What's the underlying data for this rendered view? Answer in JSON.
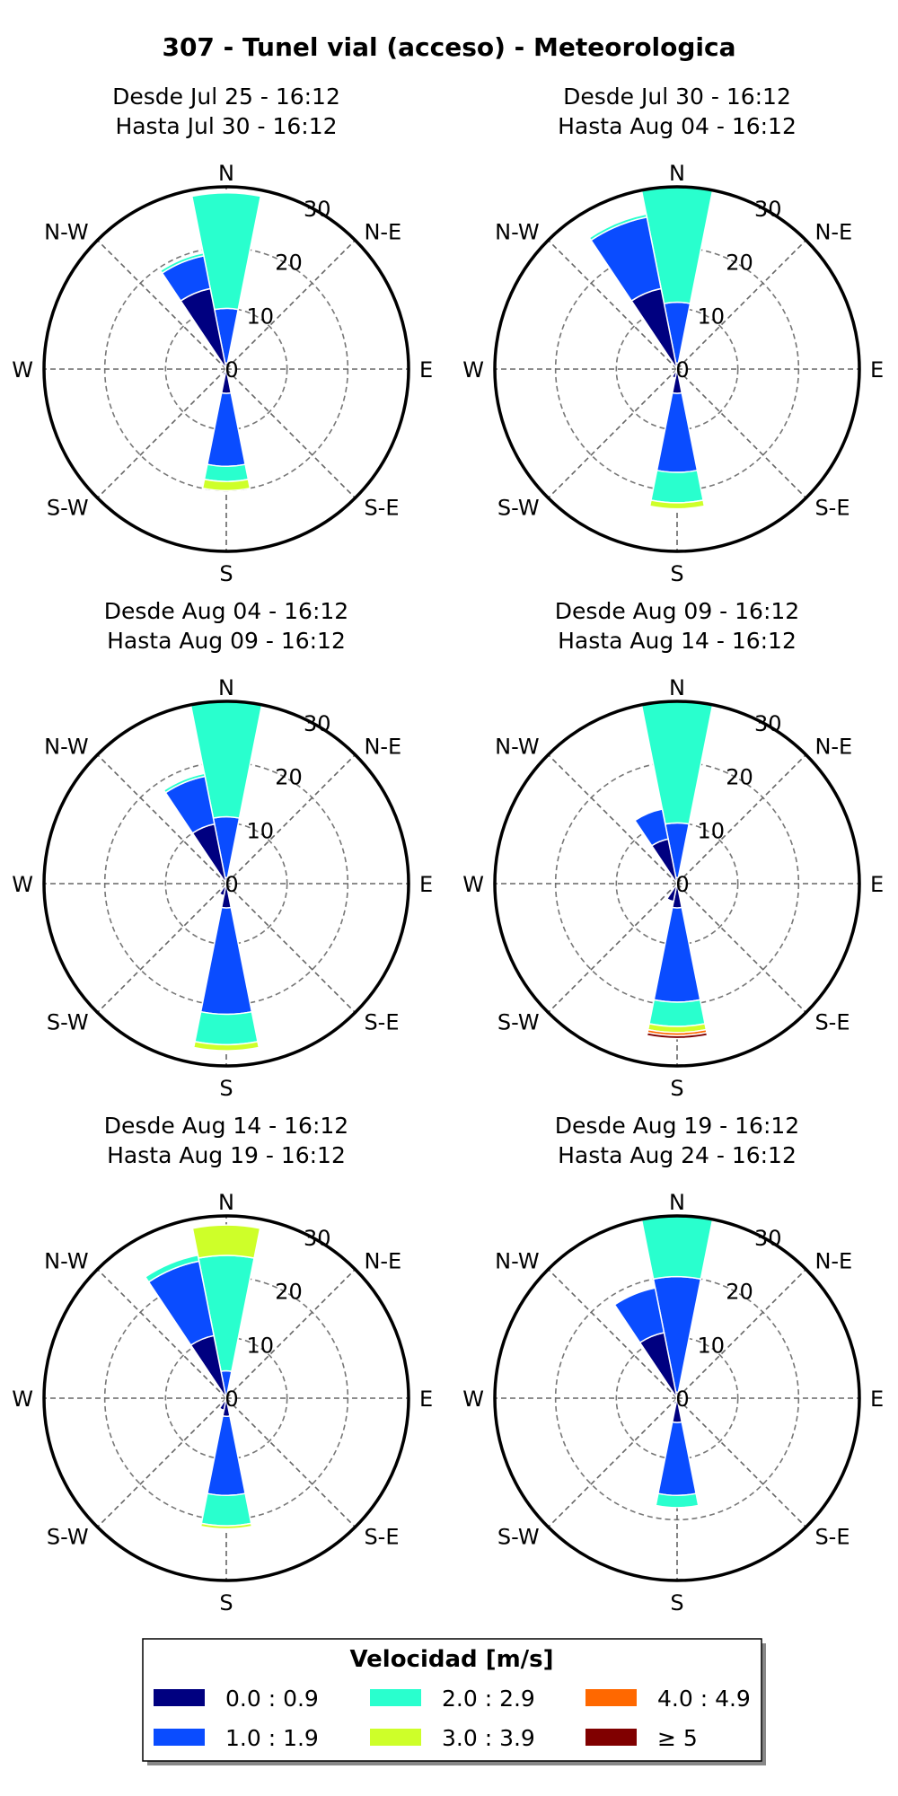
{
  "title": "307 - Tunel vial (acceso) - Meteorologica",
  "legend": {
    "title": "Velocidad [m/s]",
    "items": [
      {
        "label": "0.0 : 0.9",
        "color": "#000080"
      },
      {
        "label": "2.0 : 2.9",
        "color": "#29ffce"
      },
      {
        "label": "4.0 : 4.9",
        "color": "#ff6800"
      },
      {
        "label": "1.0 : 1.9",
        "color": "#0a4cff"
      },
      {
        "label": "3.0 : 3.9",
        "color": "#ceff29"
      },
      {
        "label": "≥ 5",
        "color": "#800000"
      }
    ]
  },
  "axes_labels": {
    "directions": [
      "N",
      "N-E",
      "E",
      "S-E",
      "S",
      "S-W",
      "W",
      "N-W"
    ],
    "radial_ticks": [
      "0",
      "10",
      "20",
      "30"
    ]
  },
  "chart_data": [
    {
      "type": "windrose",
      "title_line1": "Desde Jul 25 - 16:12",
      "title_line2": "Hasta Jul 30 - 16:12",
      "rmax": 30,
      "bins": [
        "0.0 : 0.9",
        "1.0 : 1.9",
        "2.0 : 2.9",
        "3.0 : 3.9",
        "4.0 : 4.9",
        "≥ 5"
      ],
      "sectors": [
        {
          "direction": 0,
          "values": [
            1,
            9,
            19,
            0,
            0,
            0
          ]
        },
        {
          "direction": 180,
          "values": [
            4,
            12,
            2.5,
            1.5,
            0,
            0
          ]
        },
        {
          "direction": 202.5,
          "values": [
            1,
            0,
            0,
            0,
            0,
            0
          ]
        },
        {
          "direction": 337.5,
          "values": [
            13.5,
            5.5,
            0.5,
            0,
            0,
            0
          ]
        }
      ]
    },
    {
      "type": "windrose",
      "title_line1": "Desde Jul 30 - 16:12",
      "title_line2": "Hasta Aug 04 - 16:12",
      "rmax": 30,
      "bins": [
        "0.0 : 0.9",
        "1.0 : 1.9",
        "2.0 : 2.9",
        "3.0 : 3.9",
        "4.0 : 4.9",
        "≥ 5"
      ],
      "sectors": [
        {
          "direction": 0,
          "values": [
            1,
            10,
            19,
            0,
            0,
            0
          ]
        },
        {
          "direction": 180,
          "values": [
            4,
            13,
            5,
            1,
            0,
            0
          ]
        },
        {
          "direction": 202.5,
          "values": [
            1.5,
            0,
            0,
            0,
            0,
            0
          ]
        },
        {
          "direction": 337.5,
          "values": [
            13.5,
            12,
            0.5,
            0,
            0,
            0
          ]
        }
      ]
    },
    {
      "type": "windrose",
      "title_line1": "Desde Aug 04 - 16:12",
      "title_line2": "Hasta Aug 09 - 16:12",
      "rmax": 30,
      "bins": [
        "0.0 : 0.9",
        "1.0 : 1.9",
        "2.0 : 2.9",
        "3.0 : 3.9",
        "4.0 : 4.9",
        "≥ 5"
      ],
      "sectors": [
        {
          "direction": 0,
          "values": [
            1,
            10,
            19,
            0,
            0,
            0
          ]
        },
        {
          "direction": 180,
          "values": [
            4,
            17.5,
            5,
            1,
            0,
            0
          ]
        },
        {
          "direction": 202.5,
          "values": [
            2,
            0,
            0,
            0,
            0,
            0
          ]
        },
        {
          "direction": 337.5,
          "values": [
            10,
            8,
            0.5,
            0,
            0,
            0
          ]
        }
      ]
    },
    {
      "type": "windrose",
      "title_line1": "Desde Aug 09 - 16:12",
      "title_line2": "Hasta Aug 14 - 16:12",
      "rmax": 30,
      "bins": [
        "0.0 : 0.9",
        "1.0 : 1.9",
        "2.0 : 2.9",
        "3.0 : 3.9",
        "4.0 : 4.9",
        "≥ 5"
      ],
      "sectors": [
        {
          "direction": 0,
          "values": [
            1,
            9,
            20,
            0,
            0,
            0
          ]
        },
        {
          "direction": 180,
          "values": [
            4,
            15.5,
            4,
            1,
            0.5,
            0.5
          ]
        },
        {
          "direction": 202.5,
          "values": [
            3,
            0,
            0,
            0,
            0,
            0
          ]
        },
        {
          "direction": 337.5,
          "values": [
            7.5,
            5,
            0,
            0,
            0,
            0
          ]
        }
      ]
    },
    {
      "type": "windrose",
      "title_line1": "Desde Aug 14 - 16:12",
      "title_line2": "Hasta Aug 19 - 16:12",
      "rmax": 30,
      "bins": [
        "0.0 : 0.9",
        "1.0 : 1.9",
        "2.0 : 2.9",
        "3.0 : 3.9",
        "4.0 : 4.9",
        "≥ 5"
      ],
      "sectors": [
        {
          "direction": 0,
          "values": [
            0.5,
            4,
            19,
            5,
            0,
            0
          ]
        },
        {
          "direction": 180,
          "values": [
            3,
            13,
            5,
            0.5,
            0,
            0
          ]
        },
        {
          "direction": 202.5,
          "values": [
            2,
            0,
            0,
            0,
            0,
            0
          ]
        },
        {
          "direction": 337.5,
          "values": [
            10.5,
            12.5,
            1,
            0,
            0,
            0
          ]
        }
      ]
    },
    {
      "type": "windrose",
      "title_line1": "Desde Aug 19 - 16:12",
      "title_line2": "Hasta Aug 24 - 16:12",
      "rmax": 30,
      "bins": [
        "0.0 : 0.9",
        "1.0 : 1.9",
        "2.0 : 2.9",
        "3.0 : 3.9",
        "4.0 : 4.9",
        "≥ 5"
      ],
      "sectors": [
        {
          "direction": 0,
          "values": [
            1,
            19,
            10,
            0,
            0,
            0
          ]
        },
        {
          "direction": 180,
          "values": [
            4,
            12,
            2,
            0,
            0,
            0
          ]
        },
        {
          "direction": 202.5,
          "values": [
            1,
            0,
            0,
            0,
            0,
            0
          ]
        },
        {
          "direction": 337.5,
          "values": [
            11,
            7.5,
            0,
            0,
            0,
            0
          ]
        }
      ]
    }
  ]
}
